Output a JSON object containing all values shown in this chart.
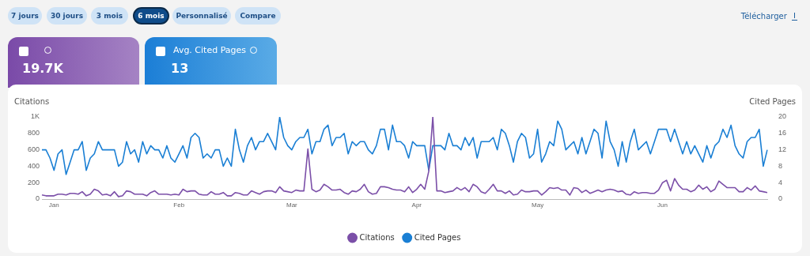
{
  "chart_data": {
    "type": "line",
    "ylabel": "Citations",
    "y2label": "Cited Pages",
    "annotations": [
      "7 jours",
      "30 jours",
      "3 mois",
      "6 mois",
      "Personnalisé",
      "Compare",
      "Télécharger",
      "19.7K",
      "Avg. Cited Pages",
      "13"
    ],
    "categories": [
      null,
      null,
      null,
      "Jan",
      null,
      null,
      null,
      null,
      null,
      null,
      null,
      null,
      null,
      null,
      null,
      null,
      null,
      null,
      null,
      null,
      null,
      null,
      null,
      null,
      null,
      null,
      null,
      null,
      null,
      null,
      null,
      null,
      null,
      null,
      "Feb",
      null,
      null,
      null,
      null,
      null,
      null,
      null,
      null,
      null,
      null,
      null,
      null,
      null,
      null,
      null,
      null,
      null,
      null,
      null,
      null,
      null,
      null,
      null,
      null,
      null,
      null,
      null,
      "Mar",
      null,
      null,
      null,
      null,
      null,
      null,
      null,
      null,
      null,
      null,
      null,
      null,
      null,
      null,
      null,
      null,
      null,
      null,
      null,
      null,
      null,
      null,
      null,
      null,
      null,
      null,
      null,
      null,
      null,
      null,
      "Apr",
      null,
      null,
      null,
      null,
      null,
      null,
      null,
      null,
      null,
      null,
      null,
      null,
      null,
      null,
      null,
      null,
      null,
      null,
      null,
      null,
      null,
      null,
      null,
      null,
      null,
      null,
      null,
      null,
      null,
      "May",
      null,
      null,
      null,
      null,
      null,
      null,
      null,
      null,
      null,
      null,
      null,
      null,
      null,
      null,
      null,
      null,
      null,
      null,
      null,
      null,
      null,
      null,
      null,
      null,
      null,
      null,
      null,
      null,
      null,
      null,
      "Jun",
      null,
      null,
      null,
      null,
      null,
      null,
      null,
      null,
      null,
      null,
      null,
      null,
      null,
      null,
      null,
      null,
      null,
      null,
      null,
      null,
      null,
      null,
      null,
      null,
      null,
      null
    ],
    "series": [
      {
        "name": "Citations",
        "color": "#7b4fa8",
        "axis": "y",
        "values": [
          50,
          40,
          40,
          40,
          60,
          60,
          50,
          70,
          70,
          60,
          90,
          40,
          60,
          120,
          100,
          50,
          60,
          40,
          90,
          30,
          40,
          100,
          90,
          60,
          60,
          60,
          40,
          80,
          100,
          60,
          60,
          60,
          50,
          60,
          50,
          120,
          90,
          100,
          100,
          60,
          50,
          50,
          90,
          60,
          60,
          80,
          40,
          40,
          80,
          70,
          50,
          50,
          100,
          80,
          60,
          90,
          100,
          100,
          80,
          150,
          100,
          90,
          80,
          110,
          100,
          100,
          610,
          120,
          90,
          110,
          180,
          150,
          110,
          110,
          120,
          80,
          60,
          100,
          90,
          120,
          180,
          90,
          60,
          70,
          150,
          150,
          140,
          120,
          110,
          110,
          90,
          150,
          80,
          120,
          180,
          120,
          340,
          1000,
          100,
          100,
          80,
          90,
          100,
          140,
          110,
          140,
          90,
          180,
          150,
          90,
          70,
          120,
          180,
          100,
          100,
          70,
          100,
          50,
          60,
          110,
          90,
          90,
          100,
          100,
          50,
          90,
          140,
          130,
          140,
          110,
          110,
          50,
          140,
          130,
          80,
          110,
          70,
          90,
          110,
          90,
          110,
          120,
          110,
          90,
          100,
          60,
          50,
          90,
          70,
          80,
          80,
          70,
          70,
          110,
          200,
          230,
          100,
          250,
          170,
          120,
          120,
          90,
          110,
          170,
          120,
          150,
          90,
          120,
          220,
          180,
          140,
          140,
          140,
          90,
          90,
          140,
          110,
          160,
          100,
          90,
          80
        ]
      },
      {
        "name": "Cited Pages",
        "color": "#1a7fd4",
        "axis": "y2",
        "values": [
          12,
          12,
          10,
          7,
          11,
          12,
          6,
          9,
          12,
          12,
          14,
          7,
          10,
          11,
          14,
          12,
          12,
          12,
          12,
          8,
          9,
          14,
          11,
          12,
          9,
          14,
          11,
          13,
          12,
          12,
          10,
          13,
          10,
          9,
          11,
          13,
          10,
          15,
          16,
          15,
          10,
          11,
          10,
          12,
          12,
          8,
          10,
          8,
          17,
          12,
          9,
          13,
          15,
          12,
          14,
          14,
          16,
          14,
          12,
          20,
          15,
          13,
          12,
          14,
          15,
          15,
          17,
          11,
          14,
          14,
          17,
          18,
          13,
          15,
          15,
          16,
          11,
          14,
          13,
          14,
          14,
          12,
          11,
          13,
          17,
          17,
          12,
          18,
          14,
          14,
          13,
          10,
          14,
          13,
          13,
          13,
          7,
          13,
          13,
          13,
          12,
          16,
          13,
          13,
          12,
          15,
          13,
          15,
          10,
          14,
          14,
          14,
          15,
          12,
          17,
          16,
          13,
          9,
          14,
          16,
          15,
          10,
          11,
          17,
          9,
          11,
          14,
          13,
          19,
          17,
          12,
          13,
          14,
          11,
          15,
          11,
          14,
          17,
          16,
          10,
          19,
          14,
          12,
          8,
          14,
          9,
          14,
          17,
          12,
          13,
          14,
          11,
          14,
          17,
          17,
          17,
          14,
          17,
          14,
          11,
          14,
          11,
          13,
          11,
          9,
          13,
          10,
          13,
          14,
          17,
          15,
          18,
          13,
          11,
          10,
          14,
          15,
          15,
          17,
          8,
          12
        ]
      }
    ],
    "ylim": [
      0,
      1000
    ],
    "yticks": [
      0,
      200,
      400,
      600,
      800,
      {
        "value": 1000,
        "label": "1K"
      }
    ],
    "y2lim": [
      0,
      20
    ],
    "y2ticks": [
      0,
      4,
      8,
      12,
      16,
      20
    ],
    "grid": false,
    "legend": "bottom"
  }
}
